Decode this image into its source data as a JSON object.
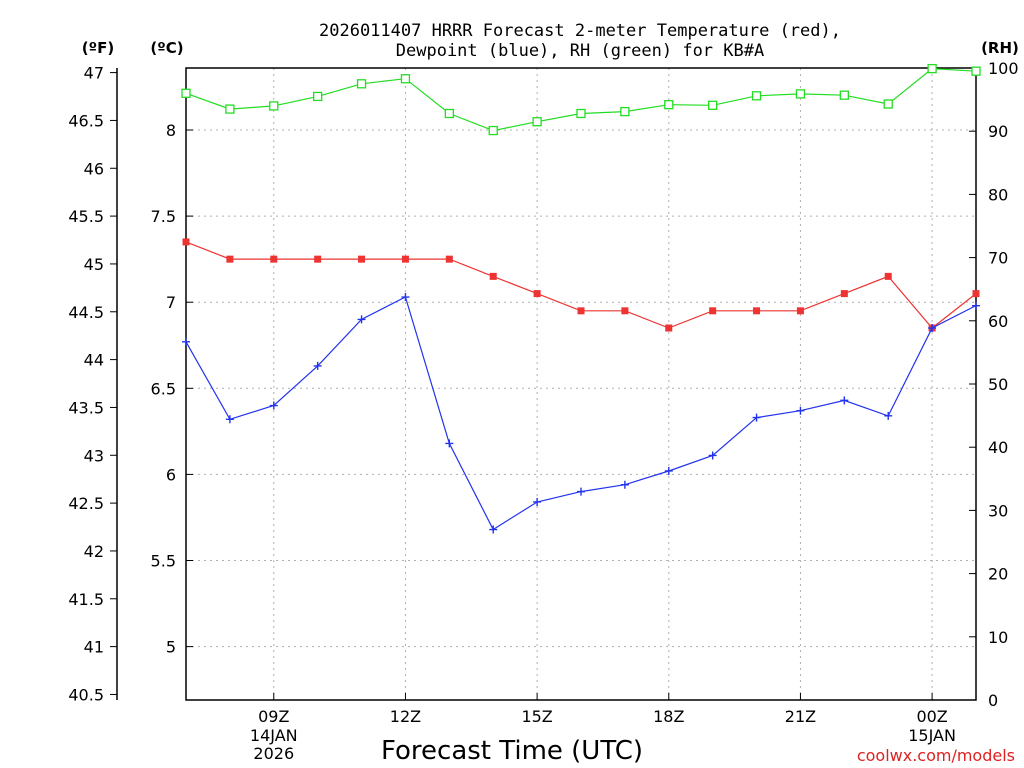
{
  "chart_data": {
    "type": "line",
    "title_line1": "2026011407 HRRR Forecast 2-meter Temperature (red),",
    "title_line2": "Dewpoint (blue), RH (green) for KB#A",
    "xlabel": "Forecast Time (UTC)",
    "axis_unit_f": "(ºF)",
    "axis_unit_c": "(ºC)",
    "axis_unit_rh": "(RH)",
    "credit": "coolwx.com/models",
    "x_hours": [
      7,
      8,
      9,
      10,
      11,
      12,
      13,
      14,
      15,
      16,
      17,
      18,
      19,
      20,
      21,
      22,
      23,
      24,
      25
    ],
    "x_range": [
      7,
      25
    ],
    "x_ticks": [
      {
        "hour": 9,
        "label": "09Z",
        "date": "14JAN",
        "year": "2026"
      },
      {
        "hour": 12,
        "label": "12Z",
        "date": "",
        "year": ""
      },
      {
        "hour": 15,
        "label": "15Z",
        "date": "",
        "year": ""
      },
      {
        "hour": 18,
        "label": "18Z",
        "date": "",
        "year": ""
      },
      {
        "hour": 21,
        "label": "21Z",
        "date": "",
        "year": ""
      },
      {
        "hour": 24,
        "label": "00Z",
        "date": "15JAN",
        "year": ""
      }
    ],
    "ylim_c": [
      4.69,
      8.36
    ],
    "ylim_f": [
      40.442,
      47.048
    ],
    "ylim_rh": [
      0,
      100
    ],
    "yticks_f": [
      "40.5",
      "41",
      "41.5",
      "42",
      "42.5",
      "43",
      "43.5",
      "44",
      "44.5",
      "45",
      "45.5",
      "46",
      "46.5",
      "47"
    ],
    "yticks_c": [
      "5",
      "5.5",
      "6",
      "6.5",
      "7",
      "7.5",
      "8"
    ],
    "yticks_rh": [
      "0",
      "10",
      "20",
      "30",
      "40",
      "50",
      "60",
      "70",
      "80",
      "90",
      "100"
    ],
    "series": [
      {
        "name": "Temperature",
        "unit": "C",
        "color": "#ee3333",
        "marker": "filled-square",
        "values": [
          7.35,
          7.25,
          7.25,
          7.25,
          7.25,
          7.25,
          7.25,
          7.15,
          7.05,
          6.95,
          6.95,
          6.85,
          6.95,
          6.95,
          6.95,
          7.05,
          7.15,
          6.85,
          7.05
        ]
      },
      {
        "name": "Dewpoint",
        "unit": "C",
        "color": "#2233ee",
        "marker": "plus",
        "values": [
          6.77,
          6.32,
          6.4,
          6.63,
          6.9,
          7.03,
          6.18,
          5.68,
          5.84,
          5.9,
          5.94,
          6.02,
          6.11,
          6.33,
          6.37,
          6.43,
          6.34,
          6.85,
          6.98
        ]
      },
      {
        "name": "RH",
        "unit": "%",
        "color": "#22dd22",
        "marker": "open-square",
        "values": [
          96,
          93.5,
          94,
          95.5,
          97.5,
          98.3,
          92.8,
          90.1,
          91.5,
          92.8,
          93.1,
          94.2,
          94.1,
          95.6,
          95.9,
          95.7,
          94.3,
          99.9,
          99.5
        ]
      }
    ]
  }
}
